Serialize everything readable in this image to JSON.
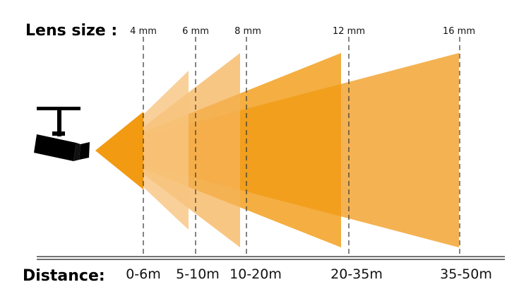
{
  "header": {
    "lens_title": "Lens size :",
    "distance_title": "Distance:"
  },
  "lenses": [
    {
      "lens": "4 mm",
      "distance": "0-6m"
    },
    {
      "lens": "6 mm",
      "distance": "5-10m"
    },
    {
      "lens": "8 mm",
      "distance": "10-20m"
    },
    {
      "lens": "12 mm",
      "distance": "20-35m"
    },
    {
      "lens": "16 mm",
      "distance": "35-50m"
    }
  ]
}
